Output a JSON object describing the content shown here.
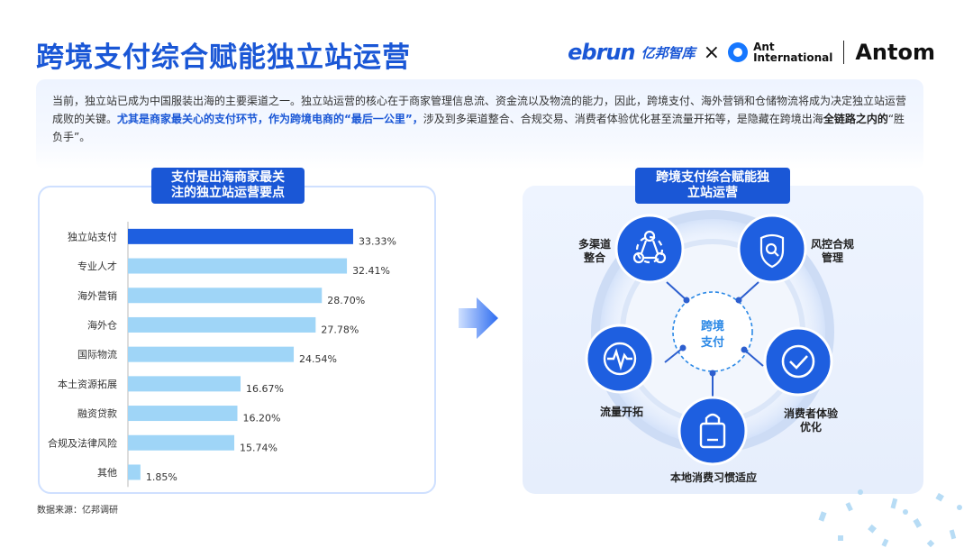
{
  "title": "跨境支付综合赋能独立站运营",
  "logos": {
    "ebrun": "ebrun",
    "ebrun_cn": "亿邦智库",
    "cross": "×",
    "ant_line1": "Ant",
    "ant_line2": "International",
    "antom": "Antom"
  },
  "intro": {
    "p1": "当前，独立站已成为中国服装出海的主要渠道之一。独立站运营的核心在于商家管理信息流、资金流以及物流的能力，因此，跨境支付、海外营销和仓储物流将成为决定独立站运营成败的关键。",
    "p2": "尤其是商家最关心的支付环节，作为跨境电商的“最后一公里”，",
    "p3": "涉及到多渠道整合、合规交易、消费者体验优化甚至流量开拓等，是隐藏在跨境出海",
    "p4": "全链路之内的",
    "p5": "“胜负手”。"
  },
  "left_tag": {
    "line1": "支付是出海商家最关",
    "line2": "注的独立站运营要点"
  },
  "right_tag": {
    "line1": "跨境支付综合赋能独",
    "line2": "立站运营"
  },
  "source": "数据来源：亿邦调研",
  "chart_data": {
    "type": "bar",
    "orientation": "horizontal",
    "categories": [
      "独立站支付",
      "专业人才",
      "海外营销",
      "海外仓",
      "国际物流",
      "本土资源拓展",
      "融资贷款",
      "合规及法律风险",
      "其他"
    ],
    "values": [
      33.33,
      32.41,
      28.7,
      27.78,
      24.54,
      16.67,
      16.2,
      15.74,
      1.85
    ],
    "value_labels": [
      "33.33%",
      "32.41%",
      "28.70%",
      "27.78%",
      "24.54%",
      "16.67%",
      "16.20%",
      "15.74%",
      "1.85%"
    ],
    "xlim": [
      0,
      40
    ],
    "highlight_index": 0,
    "colors": {
      "highlight": "#1e5fe0",
      "normal": "#9fd5f7"
    },
    "grid": false,
    "title": "",
    "xlabel": "",
    "ylabel": ""
  },
  "diagram": {
    "center": {
      "line1": "跨境",
      "line2": "支付"
    },
    "nodes": [
      {
        "name": "multi-channel",
        "line1": "多渠道",
        "line2": "整合",
        "icon": "hub-icon"
      },
      {
        "name": "risk-compliance",
        "line1": "风控合规",
        "line2": "管理",
        "icon": "shield-search-icon"
      },
      {
        "name": "consumer-experience",
        "line1": "消费者体验",
        "line2": "优化",
        "icon": "check-circle-icon"
      },
      {
        "name": "localization",
        "line1": "本地消费习惯适应",
        "line2": "",
        "icon": "shopping-bag-icon"
      },
      {
        "name": "traffic",
        "line1": "流量开拓",
        "line2": "",
        "icon": "pulse-icon"
      }
    ]
  },
  "colors": {
    "brand": "#1a57d6",
    "node": "#1e5fe0",
    "panel": "#eaf1fd"
  }
}
